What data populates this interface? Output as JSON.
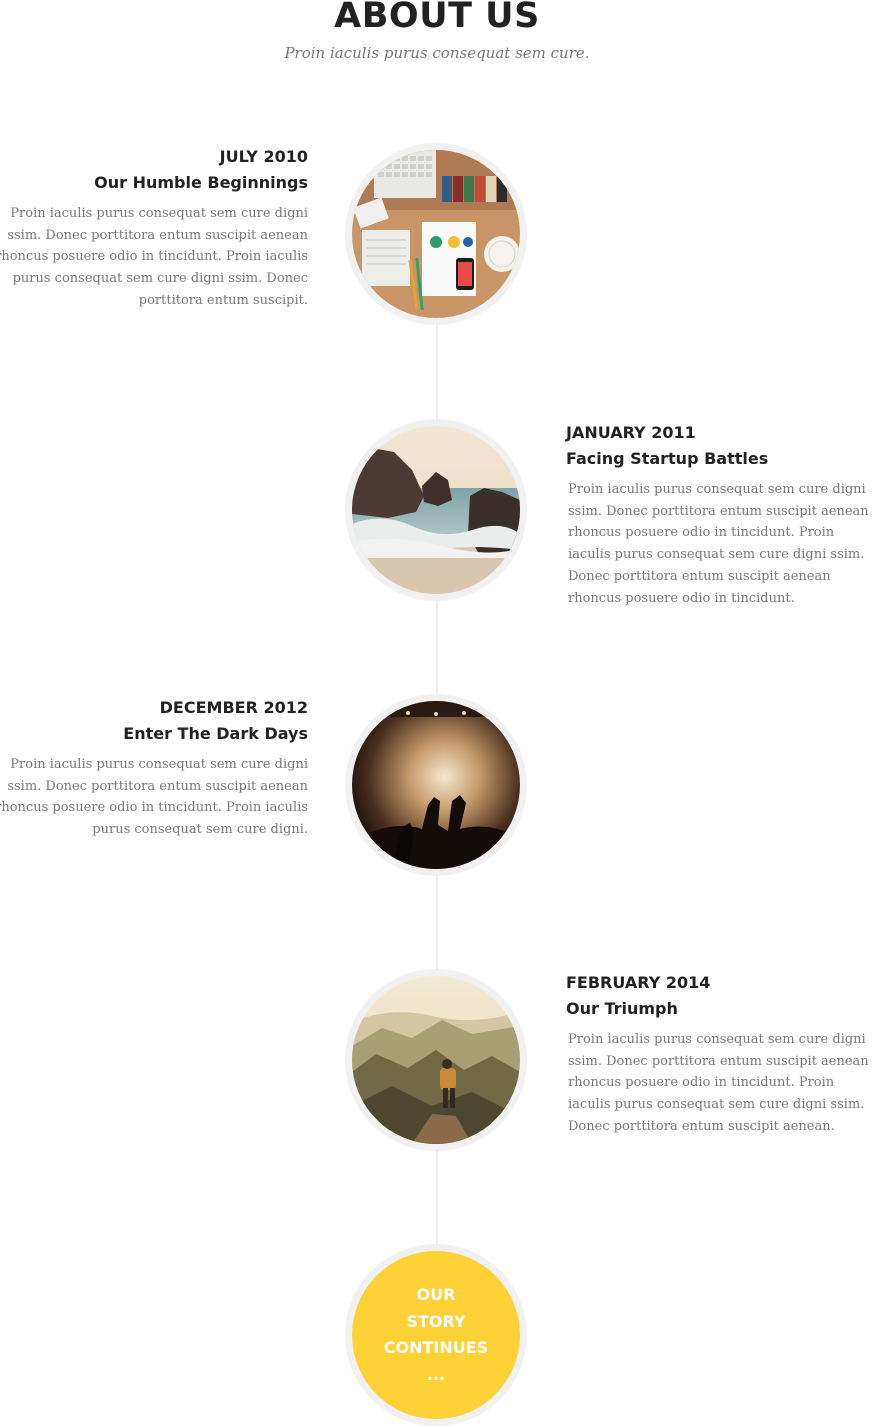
{
  "header": {
    "title": "ABOUT US",
    "subtitle": "Proin iaculis purus consequat sem cure."
  },
  "timeline": [
    {
      "date": "JULY 2010",
      "heading": "Our Humble Beginnings",
      "body": "Proin iaculis purus consequat sem cure digni ssim. Donec porttitora entum suscipit aenean rhoncus posuere odio in tincidunt. Proin iaculis purus consequat sem cure digni ssim. Donec porttitora entum suscipit.",
      "side": "left",
      "image": "desk-flatlay-photo"
    },
    {
      "date": "JANUARY 2011",
      "heading": "Facing Startup Battles",
      "body": "Proin iaculis purus consequat sem cure digni ssim. Donec porttitora entum suscipit aenean rhoncus posuere odio in tincidunt. Proin iaculis purus consequat sem cure digni ssim. Donec porttitora entum suscipit aenean rhoncus posuere odio in tincidunt.",
      "side": "right",
      "image": "sea-rocks-photo"
    },
    {
      "date": "DECEMBER 2012",
      "heading": "Enter The Dark Days",
      "body": "Proin iaculis purus consequat sem cure digni ssim. Donec porttitora entum suscipit aenean rhoncus posuere odio in tincidunt. Proin iaculis purus consequat sem cure digni.",
      "side": "left",
      "image": "concert-crowd-photo"
    },
    {
      "date": "FEBRUARY 2014",
      "heading": "Our Triumph",
      "body": "Proin iaculis purus consequat sem cure digni ssim. Donec porttitora entum suscipit aenean rhoncus posuere odio in tincidunt. Proin iaculis purus consequat sem cure digni ssim. Donec porttitora entum suscipit aenean.",
      "side": "right",
      "image": "mountain-hiker-photo"
    }
  ],
  "ending": {
    "label": "OUR\nSTORY\nCONTINUES\n...",
    "color": "#fed136"
  },
  "colors": {
    "accent": "#fed136",
    "heading": "#222222",
    "muted": "#777777",
    "ring": "#f1f1f1"
  }
}
